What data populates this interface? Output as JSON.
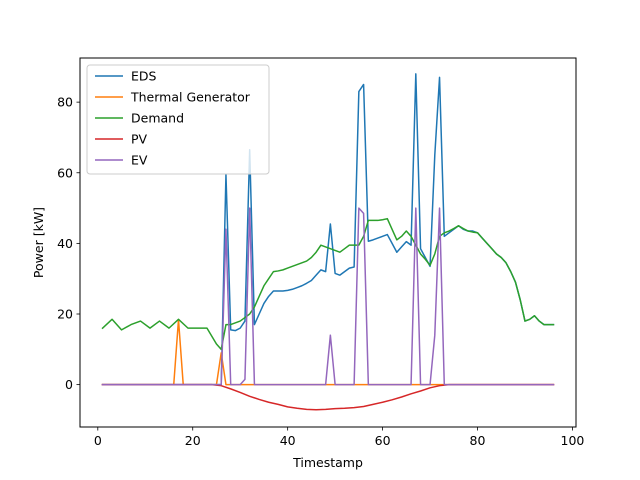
{
  "chart_data": {
    "type": "line",
    "xlabel": "Timestamp",
    "ylabel": "Power [kW]",
    "xlim": [
      -3.75,
      100.75
    ],
    "ylim": [
      -12,
      92.5
    ],
    "xticks": [
      0,
      20,
      40,
      60,
      80,
      100
    ],
    "yticks": [
      0,
      20,
      40,
      60,
      80
    ],
    "legend_position": "upper-left",
    "grid": false,
    "series": [
      {
        "name": "EDS",
        "color": "#1f77b4",
        "x": [
          1,
          3,
          5,
          7,
          9,
          11,
          13,
          15,
          17,
          18,
          19,
          21,
          23,
          25,
          26,
          27,
          28,
          29,
          30,
          31,
          32,
          33,
          34,
          35,
          36,
          37,
          38,
          39,
          40,
          41,
          42,
          43,
          44,
          45,
          46,
          47,
          48,
          49,
          50,
          51,
          52,
          53,
          54,
          55,
          56,
          57,
          58,
          59,
          60,
          61,
          62,
          63,
          64,
          65,
          66,
          67,
          68,
          69,
          70,
          71,
          72,
          73,
          74,
          75,
          76,
          77,
          78,
          79,
          80,
          81,
          82,
          83,
          84,
          85,
          86,
          87,
          88,
          89,
          90,
          91,
          92,
          93,
          94,
          95,
          96
        ],
        "y": [
          0,
          0,
          0,
          0,
          0,
          0,
          0,
          0,
          0,
          0,
          0,
          0,
          0,
          0,
          0,
          59.5,
          15.5,
          15.3,
          16,
          18,
          66.5,
          17,
          20,
          23,
          25,
          26.5,
          26.5,
          26.5,
          26.7,
          27,
          27.5,
          28,
          28.7,
          29.5,
          31,
          32.5,
          32,
          45.5,
          31.5,
          31,
          32,
          33,
          33.3,
          83,
          85,
          40.6,
          41,
          41.5,
          42,
          42.5,
          40,
          37.5,
          39,
          40.5,
          39.5,
          88,
          38.5,
          36,
          33.5,
          65,
          87,
          42,
          43,
          44,
          45,
          44,
          43.5,
          43.5,
          43,
          41.5,
          40,
          38.5,
          37,
          36,
          34.5,
          32,
          29,
          24,
          18,
          18.5,
          19.5,
          18,
          17,
          17,
          17
        ]
      },
      {
        "name": "Thermal Generator",
        "color": "#ff7f0e",
        "x": [
          1,
          16,
          17,
          18,
          25,
          26,
          27,
          28,
          96
        ],
        "y": [
          0,
          0,
          18.4,
          0,
          0,
          9,
          0,
          0,
          0
        ]
      },
      {
        "name": "Demand",
        "color": "#2ca02c",
        "x": [
          1,
          3,
          5,
          7,
          9,
          11,
          13,
          15,
          17,
          19,
          21,
          23,
          25,
          26,
          27,
          28,
          29,
          30,
          31,
          32,
          33,
          34,
          35,
          36,
          37,
          38,
          39,
          40,
          41,
          42,
          43,
          44,
          45,
          46,
          47,
          48,
          49,
          50,
          51,
          52,
          53,
          54,
          55,
          56,
          57,
          58,
          59,
          60,
          61,
          62,
          63,
          64,
          65,
          66,
          67,
          68,
          69,
          70,
          71,
          72,
          73,
          74,
          75,
          76,
          77,
          78,
          79,
          80,
          81,
          82,
          83,
          84,
          85,
          86,
          87,
          88,
          89,
          90,
          91,
          92,
          93,
          94,
          95,
          96
        ],
        "y": [
          16,
          18.5,
          15.5,
          17,
          18,
          16,
          18,
          16,
          18.5,
          16,
          16,
          16,
          11.5,
          10,
          17,
          17,
          17.5,
          18,
          19,
          20,
          22,
          25,
          28,
          30,
          32,
          32.2,
          32.5,
          33,
          33.5,
          34,
          34.5,
          35,
          36,
          37.5,
          39.5,
          39,
          38.5,
          38,
          37.5,
          38.5,
          39.5,
          39.5,
          39.5,
          42,
          46.5,
          46.5,
          46.5,
          46.7,
          47,
          44,
          41,
          42,
          43.5,
          42,
          39.5,
          37,
          35.5,
          33.8,
          37,
          42,
          43,
          43.5,
          44.2,
          45,
          44.2,
          43.5,
          43.2,
          43,
          41.5,
          40,
          38.5,
          37,
          36,
          34.5,
          32,
          29,
          24,
          18,
          18.5,
          19.5,
          18,
          17,
          17,
          17
        ]
      },
      {
        "name": "PV",
        "color": "#d62728",
        "x": [
          1,
          24,
          26,
          28,
          30,
          32,
          34,
          36,
          38,
          40,
          42,
          44,
          46,
          48,
          50,
          52,
          54,
          56,
          58,
          60,
          62,
          64,
          66,
          68,
          70,
          72,
          74,
          76,
          96
        ],
        "y": [
          0,
          0,
          -0.3,
          -1.2,
          -2.2,
          -3.3,
          -4.2,
          -5,
          -5.6,
          -6.3,
          -6.7,
          -7,
          -7.1,
          -7,
          -6.8,
          -6.7,
          -6.5,
          -6.2,
          -5.6,
          -5,
          -4.3,
          -3.5,
          -2.6,
          -1.8,
          -0.9,
          -0.3,
          0,
          0,
          0
        ]
      },
      {
        "name": "EV",
        "color": "#9467bd",
        "x": [
          1,
          26,
          27,
          28,
          29,
          30,
          31,
          32,
          33,
          34,
          47,
          48,
          49,
          50,
          54,
          55,
          56,
          57,
          66,
          67,
          68,
          69,
          70,
          71,
          72,
          73,
          96
        ],
        "y": [
          0,
          0,
          44,
          0,
          0,
          0,
          1.5,
          50,
          0,
          0,
          0,
          0,
          14,
          0,
          0,
          50,
          48.5,
          0,
          0,
          50,
          0,
          0,
          0,
          14,
          50,
          0,
          0
        ]
      }
    ]
  }
}
